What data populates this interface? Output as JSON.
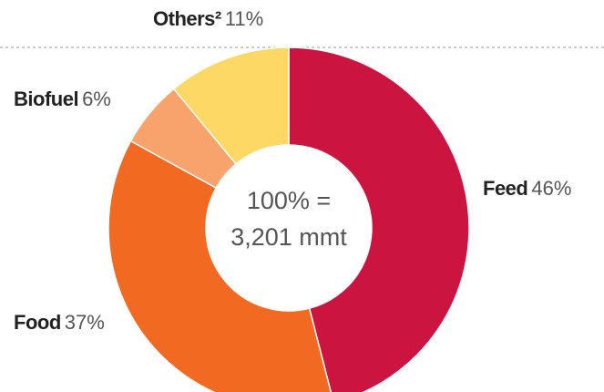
{
  "chart_data": {
    "type": "donut",
    "categories": [
      "Feed",
      "Food",
      "Biofuel",
      "Others²"
    ],
    "values": [
      46,
      37,
      6,
      11
    ],
    "value_labels": [
      "46%",
      "37%",
      "6%",
      "11%"
    ],
    "colors": [
      "#cc1440",
      "#f26a22",
      "#f8a26c",
      "#fdd865"
    ],
    "center_label": [
      "100% =",
      "3,201 mmt"
    ]
  }
}
